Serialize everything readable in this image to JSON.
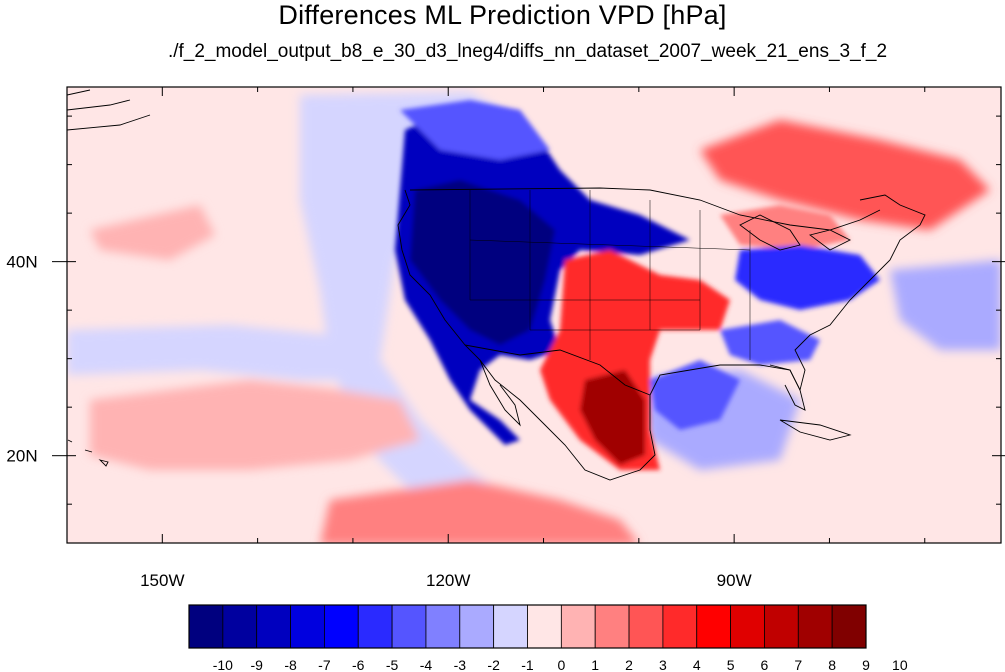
{
  "title": "Differences ML Prediction VPD [hPa]",
  "subtitle": "./f_2_model_output_b8_e_30_d3_lneg4/diffs_nn_dataset_2007_week_21_ens_3_f_2",
  "map": {
    "lon_range": [
      -160,
      -62
    ],
    "lat_range": [
      11,
      58
    ],
    "lon_ticks": [
      {
        "lon": -150,
        "label": "150W"
      },
      {
        "lon": -120,
        "label": "120W"
      },
      {
        "lon": -90,
        "label": "90W"
      }
    ],
    "lat_ticks": [
      {
        "lat": 40,
        "label": "40N"
      },
      {
        "lat": 20,
        "label": "20N"
      }
    ],
    "background_value": 0.5,
    "regions": [
      {
        "name": "western-us-dry-bias",
        "value": -10
      },
      {
        "name": "texas-mexico-wet-bias",
        "value": 8
      },
      {
        "name": "great-lakes-canada-positive",
        "value": 4
      },
      {
        "name": "eastern-us-negative",
        "value": -5
      },
      {
        "name": "gulf-negative",
        "value": -4
      },
      {
        "name": "central-pacific-positive",
        "value": 2
      },
      {
        "name": "tropical-pacific-positive",
        "value": 3
      },
      {
        "name": "north-pacific-weak-negative",
        "value": -1
      }
    ]
  },
  "colorbar": {
    "labels": [
      "-10",
      "-9",
      "-8",
      "-7",
      "-6",
      "-5",
      "-4",
      "-3",
      "-2",
      "-1",
      "0",
      "1",
      "2",
      "3",
      "4",
      "5",
      "6",
      "7",
      "8",
      "9",
      "10"
    ],
    "colors": [
      "#00007f",
      "#00009f",
      "#0000bf",
      "#0000df",
      "#0000ff",
      "#2a2aff",
      "#5555ff",
      "#8080ff",
      "#aaaaff",
      "#d5d5ff",
      "#ffe6e6",
      "#ffb3b3",
      "#ff8080",
      "#ff5555",
      "#ff2a2a",
      "#ff0000",
      "#e00000",
      "#c00000",
      "#a00000",
      "#800000"
    ]
  }
}
